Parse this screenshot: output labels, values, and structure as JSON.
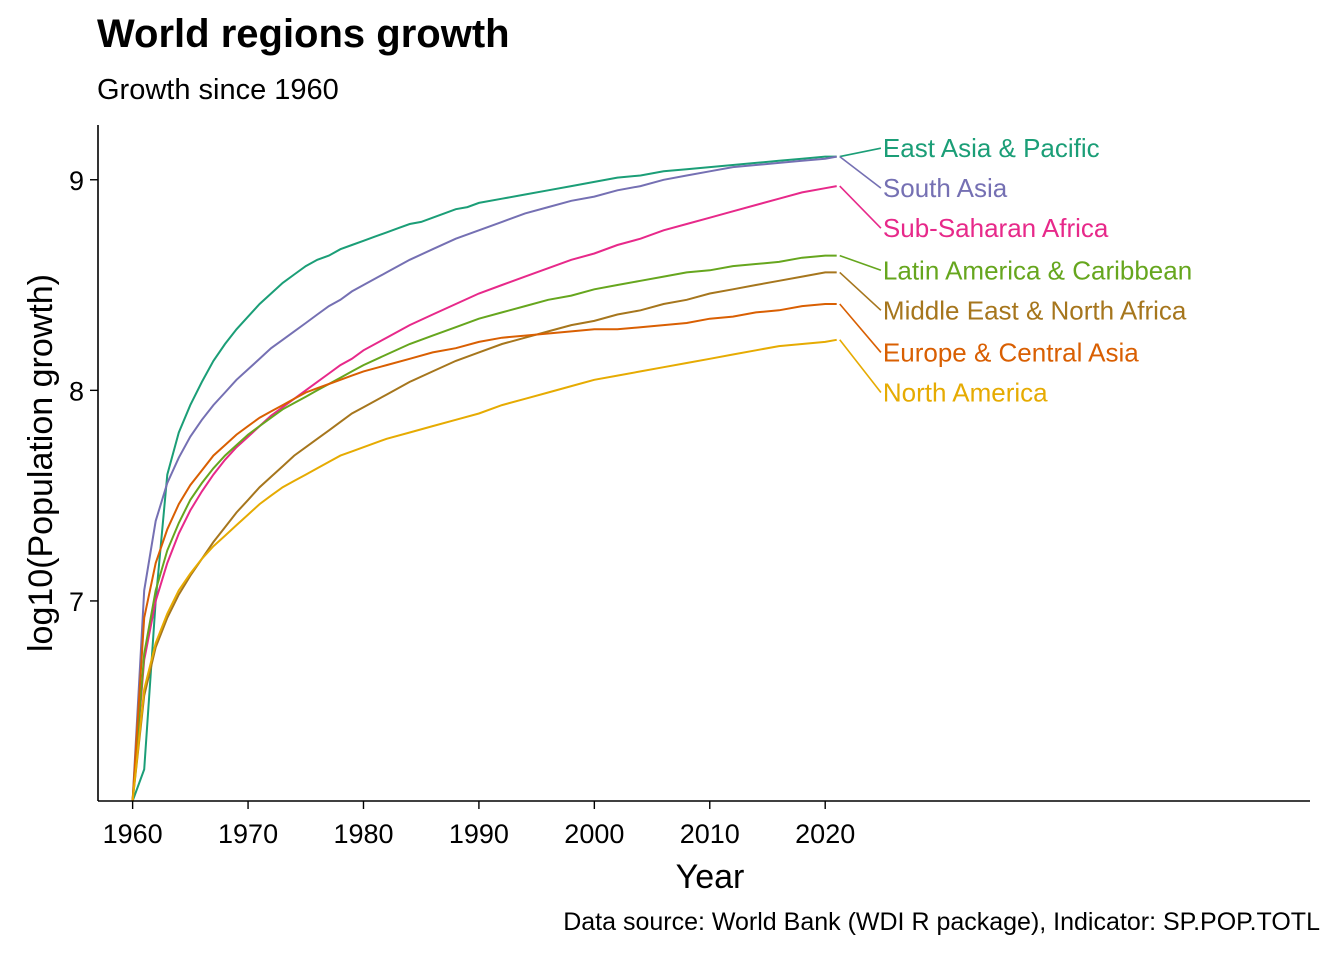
{
  "chart_data": {
    "type": "line",
    "title": "World regions growth",
    "subtitle": "Growth since 1960",
    "xlabel": "Year",
    "ylabel": "log10(Population growth)",
    "caption": "Data source: World Bank (WDI R package), Indicator: SP.POP.TOTL",
    "xlim": [
      1957,
      2062
    ],
    "ylim": [
      6.05,
      9.26
    ],
    "x_ticks": [
      1960,
      1970,
      1980,
      1990,
      2000,
      2010,
      2020
    ],
    "y_ticks": [
      7,
      8,
      9
    ],
    "grid": false,
    "legend": "direct labels at line ends (right)",
    "series": [
      {
        "name": "East Asia & Pacific",
        "color": "#1b9e77",
        "label_y": 9.15,
        "points": [
          [
            1960,
            6.05
          ],
          [
            1961,
            6.2
          ],
          [
            1962,
            7.0
          ],
          [
            1963,
            7.6
          ],
          [
            1964,
            7.8
          ],
          [
            1965,
            7.93
          ],
          [
            1966,
            8.04
          ],
          [
            1967,
            8.14
          ],
          [
            1968,
            8.22
          ],
          [
            1969,
            8.29
          ],
          [
            1970,
            8.35
          ],
          [
            1971,
            8.41
          ],
          [
            1972,
            8.46
          ],
          [
            1973,
            8.51
          ],
          [
            1974,
            8.55
          ],
          [
            1975,
            8.59
          ],
          [
            1976,
            8.62
          ],
          [
            1977,
            8.64
          ],
          [
            1978,
            8.67
          ],
          [
            1979,
            8.69
          ],
          [
            1980,
            8.71
          ],
          [
            1981,
            8.73
          ],
          [
            1982,
            8.75
          ],
          [
            1983,
            8.77
          ],
          [
            1984,
            8.79
          ],
          [
            1985,
            8.8
          ],
          [
            1986,
            8.82
          ],
          [
            1987,
            8.84
          ],
          [
            1988,
            8.86
          ],
          [
            1989,
            8.87
          ],
          [
            1990,
            8.89
          ],
          [
            1992,
            8.91
          ],
          [
            1994,
            8.93
          ],
          [
            1996,
            8.95
          ],
          [
            1998,
            8.97
          ],
          [
            2000,
            8.99
          ],
          [
            2002,
            9.01
          ],
          [
            2004,
            9.02
          ],
          [
            2006,
            9.04
          ],
          [
            2008,
            9.05
          ],
          [
            2010,
            9.06
          ],
          [
            2012,
            9.07
          ],
          [
            2014,
            9.08
          ],
          [
            2016,
            9.09
          ],
          [
            2018,
            9.1
          ],
          [
            2020,
            9.11
          ],
          [
            2021,
            9.11
          ]
        ]
      },
      {
        "name": "South Asia",
        "color": "#7570b3",
        "label_y": 8.96,
        "points": [
          [
            1960,
            6.05
          ],
          [
            1961,
            7.05
          ],
          [
            1962,
            7.38
          ],
          [
            1963,
            7.56
          ],
          [
            1964,
            7.68
          ],
          [
            1965,
            7.78
          ],
          [
            1966,
            7.86
          ],
          [
            1967,
            7.93
          ],
          [
            1968,
            7.99
          ],
          [
            1969,
            8.05
          ],
          [
            1970,
            8.1
          ],
          [
            1971,
            8.15
          ],
          [
            1972,
            8.2
          ],
          [
            1973,
            8.24
          ],
          [
            1974,
            8.28
          ],
          [
            1975,
            8.32
          ],
          [
            1976,
            8.36
          ],
          [
            1977,
            8.4
          ],
          [
            1978,
            8.43
          ],
          [
            1979,
            8.47
          ],
          [
            1980,
            8.5
          ],
          [
            1982,
            8.56
          ],
          [
            1984,
            8.62
          ],
          [
            1986,
            8.67
          ],
          [
            1988,
            8.72
          ],
          [
            1990,
            8.76
          ],
          [
            1992,
            8.8
          ],
          [
            1994,
            8.84
          ],
          [
            1996,
            8.87
          ],
          [
            1998,
            8.9
          ],
          [
            2000,
            8.92
          ],
          [
            2002,
            8.95
          ],
          [
            2004,
            8.97
          ],
          [
            2006,
            9.0
          ],
          [
            2008,
            9.02
          ],
          [
            2010,
            9.04
          ],
          [
            2012,
            9.06
          ],
          [
            2014,
            9.07
          ],
          [
            2016,
            9.08
          ],
          [
            2018,
            9.09
          ],
          [
            2020,
            9.1
          ],
          [
            2021,
            9.11
          ]
        ]
      },
      {
        "name": "Sub-Saharan Africa",
        "color": "#e7298a",
        "label_y": 8.77,
        "points": [
          [
            1960,
            6.05
          ],
          [
            1961,
            6.72
          ],
          [
            1962,
            7.0
          ],
          [
            1963,
            7.18
          ],
          [
            1964,
            7.32
          ],
          [
            1965,
            7.43
          ],
          [
            1966,
            7.52
          ],
          [
            1967,
            7.6
          ],
          [
            1968,
            7.67
          ],
          [
            1969,
            7.73
          ],
          [
            1970,
            7.78
          ],
          [
            1971,
            7.83
          ],
          [
            1972,
            7.88
          ],
          [
            1973,
            7.92
          ],
          [
            1974,
            7.96
          ],
          [
            1975,
            8.0
          ],
          [
            1976,
            8.04
          ],
          [
            1977,
            8.08
          ],
          [
            1978,
            8.12
          ],
          [
            1979,
            8.15
          ],
          [
            1980,
            8.19
          ],
          [
            1982,
            8.25
          ],
          [
            1984,
            8.31
          ],
          [
            1986,
            8.36
          ],
          [
            1988,
            8.41
          ],
          [
            1990,
            8.46
          ],
          [
            1992,
            8.5
          ],
          [
            1994,
            8.54
          ],
          [
            1996,
            8.58
          ],
          [
            1998,
            8.62
          ],
          [
            2000,
            8.65
          ],
          [
            2002,
            8.69
          ],
          [
            2004,
            8.72
          ],
          [
            2006,
            8.76
          ],
          [
            2008,
            8.79
          ],
          [
            2010,
            8.82
          ],
          [
            2012,
            8.85
          ],
          [
            2014,
            8.88
          ],
          [
            2016,
            8.91
          ],
          [
            2018,
            8.94
          ],
          [
            2020,
            8.96
          ],
          [
            2021,
            8.97
          ]
        ]
      },
      {
        "name": "Latin America & Caribbean",
        "color": "#66a61e",
        "label_y": 8.57,
        "points": [
          [
            1960,
            6.05
          ],
          [
            1961,
            6.75
          ],
          [
            1962,
            7.05
          ],
          [
            1963,
            7.24
          ],
          [
            1964,
            7.37
          ],
          [
            1965,
            7.48
          ],
          [
            1966,
            7.56
          ],
          [
            1967,
            7.63
          ],
          [
            1968,
            7.69
          ],
          [
            1969,
            7.74
          ],
          [
            1970,
            7.79
          ],
          [
            1971,
            7.83
          ],
          [
            1972,
            7.87
          ],
          [
            1973,
            7.91
          ],
          [
            1974,
            7.94
          ],
          [
            1975,
            7.97
          ],
          [
            1976,
            8.0
          ],
          [
            1977,
            8.03
          ],
          [
            1978,
            8.06
          ],
          [
            1979,
            8.09
          ],
          [
            1980,
            8.12
          ],
          [
            1982,
            8.17
          ],
          [
            1984,
            8.22
          ],
          [
            1986,
            8.26
          ],
          [
            1988,
            8.3
          ],
          [
            1990,
            8.34
          ],
          [
            1992,
            8.37
          ],
          [
            1994,
            8.4
          ],
          [
            1996,
            8.43
          ],
          [
            1998,
            8.45
          ],
          [
            2000,
            8.48
          ],
          [
            2002,
            8.5
          ],
          [
            2004,
            8.52
          ],
          [
            2006,
            8.54
          ],
          [
            2008,
            8.56
          ],
          [
            2010,
            8.57
          ],
          [
            2012,
            8.59
          ],
          [
            2014,
            8.6
          ],
          [
            2016,
            8.61
          ],
          [
            2018,
            8.63
          ],
          [
            2020,
            8.64
          ],
          [
            2021,
            8.64
          ]
        ]
      },
      {
        "name": "Middle East & North Africa",
        "color": "#a6761d",
        "label_y": 8.38,
        "points": [
          [
            1960,
            6.05
          ],
          [
            1961,
            6.55
          ],
          [
            1962,
            6.78
          ],
          [
            1963,
            6.92
          ],
          [
            1964,
            7.03
          ],
          [
            1965,
            7.12
          ],
          [
            1966,
            7.2
          ],
          [
            1967,
            7.28
          ],
          [
            1968,
            7.35
          ],
          [
            1969,
            7.42
          ],
          [
            1970,
            7.48
          ],
          [
            1971,
            7.54
          ],
          [
            1972,
            7.59
          ],
          [
            1973,
            7.64
          ],
          [
            1974,
            7.69
          ],
          [
            1975,
            7.73
          ],
          [
            1976,
            7.77
          ],
          [
            1977,
            7.81
          ],
          [
            1978,
            7.85
          ],
          [
            1979,
            7.89
          ],
          [
            1980,
            7.92
          ],
          [
            1982,
            7.98
          ],
          [
            1984,
            8.04
          ],
          [
            1986,
            8.09
          ],
          [
            1988,
            8.14
          ],
          [
            1990,
            8.18
          ],
          [
            1992,
            8.22
          ],
          [
            1994,
            8.25
          ],
          [
            1996,
            8.28
          ],
          [
            1998,
            8.31
          ],
          [
            2000,
            8.33
          ],
          [
            2002,
            8.36
          ],
          [
            2004,
            8.38
          ],
          [
            2006,
            8.41
          ],
          [
            2008,
            8.43
          ],
          [
            2010,
            8.46
          ],
          [
            2012,
            8.48
          ],
          [
            2014,
            8.5
          ],
          [
            2016,
            8.52
          ],
          [
            2018,
            8.54
          ],
          [
            2020,
            8.56
          ],
          [
            2021,
            8.56
          ]
        ]
      },
      {
        "name": "Europe & Central Asia",
        "color": "#d95f02",
        "label_y": 8.18,
        "points": [
          [
            1960,
            6.05
          ],
          [
            1961,
            6.92
          ],
          [
            1962,
            7.18
          ],
          [
            1963,
            7.34
          ],
          [
            1964,
            7.46
          ],
          [
            1965,
            7.55
          ],
          [
            1966,
            7.62
          ],
          [
            1967,
            7.69
          ],
          [
            1968,
            7.74
          ],
          [
            1969,
            7.79
          ],
          [
            1970,
            7.83
          ],
          [
            1971,
            7.87
          ],
          [
            1972,
            7.9
          ],
          [
            1973,
            7.93
          ],
          [
            1974,
            7.96
          ],
          [
            1975,
            7.99
          ],
          [
            1976,
            8.01
          ],
          [
            1977,
            8.03
          ],
          [
            1978,
            8.05
          ],
          [
            1979,
            8.07
          ],
          [
            1980,
            8.09
          ],
          [
            1982,
            8.12
          ],
          [
            1984,
            8.15
          ],
          [
            1986,
            8.18
          ],
          [
            1988,
            8.2
          ],
          [
            1990,
            8.23
          ],
          [
            1992,
            8.25
          ],
          [
            1994,
            8.26
          ],
          [
            1996,
            8.27
          ],
          [
            1998,
            8.28
          ],
          [
            2000,
            8.29
          ],
          [
            2002,
            8.29
          ],
          [
            2004,
            8.3
          ],
          [
            2006,
            8.31
          ],
          [
            2008,
            8.32
          ],
          [
            2010,
            8.34
          ],
          [
            2012,
            8.35
          ],
          [
            2014,
            8.37
          ],
          [
            2016,
            8.38
          ],
          [
            2018,
            8.4
          ],
          [
            2020,
            8.41
          ],
          [
            2021,
            8.41
          ]
        ]
      },
      {
        "name": "North America",
        "color": "#e6ab02",
        "label_y": 7.99,
        "points": [
          [
            1960,
            6.05
          ],
          [
            1961,
            6.58
          ],
          [
            1962,
            6.8
          ],
          [
            1963,
            6.94
          ],
          [
            1964,
            7.05
          ],
          [
            1965,
            7.13
          ],
          [
            1966,
            7.2
          ],
          [
            1967,
            7.26
          ],
          [
            1968,
            7.31
          ],
          [
            1969,
            7.36
          ],
          [
            1970,
            7.41
          ],
          [
            1971,
            7.46
          ],
          [
            1972,
            7.5
          ],
          [
            1973,
            7.54
          ],
          [
            1974,
            7.57
          ],
          [
            1975,
            7.6
          ],
          [
            1976,
            7.63
          ],
          [
            1977,
            7.66
          ],
          [
            1978,
            7.69
          ],
          [
            1979,
            7.71
          ],
          [
            1980,
            7.73
          ],
          [
            1982,
            7.77
          ],
          [
            1984,
            7.8
          ],
          [
            1986,
            7.83
          ],
          [
            1988,
            7.86
          ],
          [
            1990,
            7.89
          ],
          [
            1992,
            7.93
          ],
          [
            1994,
            7.96
          ],
          [
            1996,
            7.99
          ],
          [
            1998,
            8.02
          ],
          [
            2000,
            8.05
          ],
          [
            2002,
            8.07
          ],
          [
            2004,
            8.09
          ],
          [
            2006,
            8.11
          ],
          [
            2008,
            8.13
          ],
          [
            2010,
            8.15
          ],
          [
            2012,
            8.17
          ],
          [
            2014,
            8.19
          ],
          [
            2016,
            8.21
          ],
          [
            2018,
            8.22
          ],
          [
            2020,
            8.23
          ],
          [
            2021,
            8.24
          ]
        ]
      }
    ]
  }
}
